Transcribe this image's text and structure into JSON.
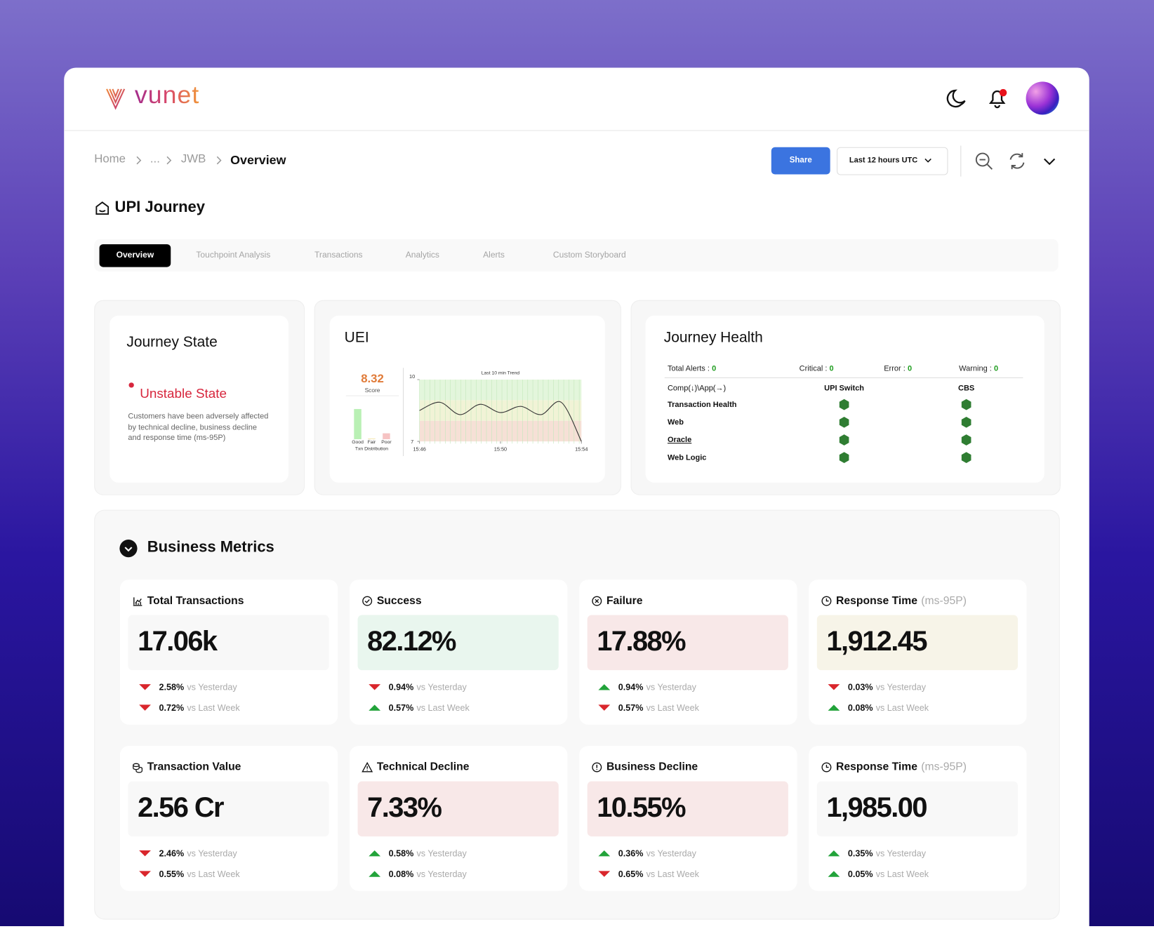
{
  "header": {
    "logo": "vunet"
  },
  "breadcrumb": [
    "Home",
    "...",
    "JWB",
    "Overview"
  ],
  "actions": {
    "share": "Share",
    "time_range": "Last 12 hours UTC"
  },
  "page_title": "UPI Journey",
  "tabs": {
    "items": [
      "Overview",
      "Touchpoint Analysis",
      "Transactions",
      "Analytics",
      "Alerts",
      "Custom Storyboard"
    ],
    "active": 0
  },
  "journey_state": {
    "title": "Journey State",
    "state": "Unstable State",
    "description": "Customers have been adversely affected by technical decline, business decline and response time (ms-95P)"
  },
  "uei": {
    "title": "UEI",
    "score": 8.32,
    "score_label": "Score",
    "distribution": {
      "title": "Txn Distribution",
      "labels": [
        "Good",
        "Fair",
        "Poor"
      ],
      "values": [
        82,
        2,
        16
      ],
      "ylim": [
        0,
        100
      ],
      "colors": [
        "#b9f0b4",
        "#f3e6b0",
        "#f6c3c3"
      ]
    },
    "trend": {
      "title": "Last 10 min Trend",
      "x": [
        "15:46",
        "15:47",
        "15:48",
        "15:49",
        "15:50",
        "15:51",
        "15:52",
        "15:53",
        "15:54"
      ],
      "values": [
        8.5,
        8.9,
        8.3,
        8.8,
        8.4,
        8.7,
        8.3,
        8.9,
        7.0
      ],
      "ylim": [
        7,
        10
      ],
      "yticks": [
        7,
        10
      ],
      "xticks": [
        "15:46",
        "15:50",
        "15:54"
      ],
      "color": "#3a3a3a",
      "bands": [
        {
          "from": 9,
          "to": 10,
          "color": "#e3f6dc"
        },
        {
          "from": 8,
          "to": 9,
          "color": "#f1f3d6"
        },
        {
          "from": 7,
          "to": 8,
          "color": "#f6e0d6"
        }
      ]
    }
  },
  "journey_health": {
    "title": "Journey Health",
    "alerts": [
      {
        "label": "Total Alerts :",
        "value": 0
      },
      {
        "label": "Critical :",
        "value": 0
      },
      {
        "label": "Error :",
        "value": 0
      },
      {
        "label": "Warning :",
        "value": 0
      }
    ],
    "value_color": "#1f9d1f",
    "columns": [
      "Comp(↓)\\App(→)",
      "UPI Switch",
      "CBS"
    ],
    "rows": [
      {
        "name": "Transaction Health",
        "link": false
      },
      {
        "name": "Web",
        "link": false
      },
      {
        "name": "Oracle",
        "link": true
      },
      {
        "name": "Web Logic",
        "link": false
      }
    ],
    "status_color": "#2f7d32"
  },
  "business_metrics": {
    "title": "Business Metrics",
    "cards": [
      {
        "title": "Total Transactions",
        "value": "17.06k",
        "color": "#f8f8f8",
        "comparisons": [
          {
            "change": "2.58%",
            "label": "vs Yesterday",
            "direction": "down"
          },
          {
            "change": "0.72%",
            "label": "vs Last Week",
            "direction": "down"
          }
        ]
      },
      {
        "title": "Success",
        "value": "82.12%",
        "color": "#e9f6ee",
        "comparisons": [
          {
            "change": "0.94%",
            "label": "vs Yesterday",
            "direction": "down"
          },
          {
            "change": "0.57%",
            "label": "vs Last Week",
            "direction": "up"
          }
        ]
      },
      {
        "title": "Failure",
        "value": "17.88%",
        "color": "#f8e8e8",
        "comparisons": [
          {
            "change": "0.94%",
            "label": "vs Yesterday",
            "direction": "up"
          },
          {
            "change": "0.57%",
            "label": "vs Last Week",
            "direction": "down"
          }
        ]
      },
      {
        "title": "Response Time",
        "unit": "(ms-95P)",
        "value": "1,912.45",
        "color": "#f7f4e8",
        "comparisons": [
          {
            "change": "0.03%",
            "label": "vs Yesterday",
            "direction": "down"
          },
          {
            "change": "0.08%",
            "label": "vs Last Week",
            "direction": "up"
          }
        ]
      },
      {
        "title": "Transaction Value",
        "value": "2.56 Cr",
        "color": "#f8f8f8",
        "comparisons": [
          {
            "change": "2.46%",
            "label": "vs Yesterday",
            "direction": "down"
          },
          {
            "change": "0.55%",
            "label": "vs Last Week",
            "direction": "down"
          }
        ]
      },
      {
        "title": "Technical Decline",
        "value": "7.33%",
        "color": "#f8e8e8",
        "comparisons": [
          {
            "change": "0.58%",
            "label": "vs Yesterday",
            "direction": "up"
          },
          {
            "change": "0.08%",
            "label": "vs Yesterday",
            "direction": "up"
          }
        ]
      },
      {
        "title": "Business Decline",
        "value": "10.55%",
        "color": "#f8e8e8",
        "comparisons": [
          {
            "change": "0.36%",
            "label": "vs Yesterday",
            "direction": "up"
          },
          {
            "change": "0.65%",
            "label": "vs Last Week",
            "direction": "down"
          }
        ]
      },
      {
        "title": "Response Time",
        "unit": "(ms-95P)",
        "value": "1,985.00",
        "color": "#f8f8f8",
        "comparisons": [
          {
            "change": "0.35%",
            "label": "vs Yesterday",
            "direction": "up"
          },
          {
            "change": "0.05%",
            "label": "vs Last Week",
            "direction": "up"
          }
        ]
      }
    ]
  }
}
